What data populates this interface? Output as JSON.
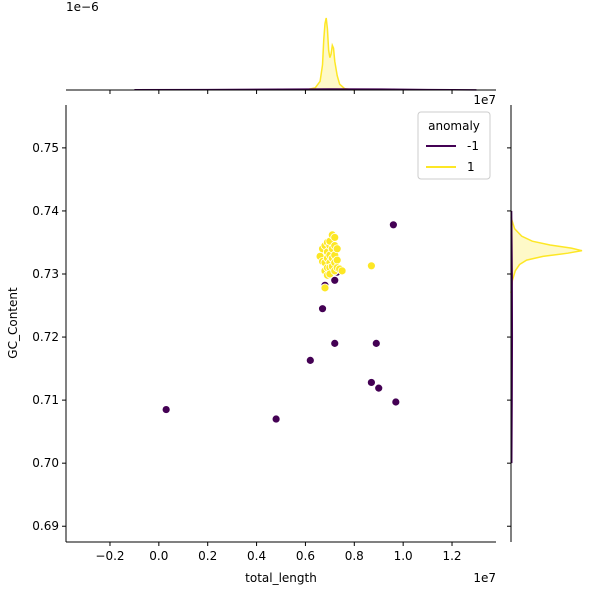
{
  "chart_data": {
    "type": "scatter",
    "xlabel": "total_length",
    "ylabel": "GC_Content",
    "x_offset_text": "1e7",
    "y_offset_text": "1e7",
    "top_marginal_offset_text": "1e−6",
    "xlim": [
      -0.38,
      1.38
    ],
    "ylim": [
      0.6875,
      0.7568
    ],
    "x_ticks": [
      -0.2,
      0.0,
      0.2,
      0.4,
      0.6,
      0.8,
      1.0,
      1.2
    ],
    "x_tick_labels": [
      "−0.2",
      "0.0",
      "0.2",
      "0.4",
      "0.6",
      "0.8",
      "1.0",
      "1.2"
    ],
    "y_ticks": [
      0.69,
      0.7,
      0.71,
      0.72,
      0.73,
      0.74,
      0.75
    ],
    "y_tick_labels": [
      "0.69",
      "0.70",
      "0.71",
      "0.72",
      "0.73",
      "0.74",
      "0.75"
    ],
    "legend": {
      "title": "anomaly",
      "placement": "top-right",
      "entries": [
        {
          "label": "-1",
          "color": "#440154"
        },
        {
          "label": "1",
          "color": "#fde725"
        }
      ]
    },
    "series": [
      {
        "name": "-1",
        "color": "#440154",
        "points": [
          [
            0.03,
            0.7085
          ],
          [
            0.48,
            0.707
          ],
          [
            0.62,
            0.7163
          ],
          [
            0.67,
            0.7245
          ],
          [
            0.68,
            0.7282
          ],
          [
            0.72,
            0.719
          ],
          [
            0.72,
            0.729
          ],
          [
            0.73,
            0.7303
          ],
          [
            0.87,
            0.7128
          ],
          [
            0.89,
            0.719
          ],
          [
            0.9,
            0.7119
          ],
          [
            0.96,
            0.7378
          ],
          [
            0.97,
            0.7097
          ]
        ]
      },
      {
        "name": "1",
        "color": "#fde725",
        "points": [
          [
            0.66,
            0.7328
          ],
          [
            0.67,
            0.734
          ],
          [
            0.67,
            0.732
          ],
          [
            0.68,
            0.7345
          ],
          [
            0.68,
            0.7318
          ],
          [
            0.68,
            0.7305
          ],
          [
            0.69,
            0.7335
          ],
          [
            0.69,
            0.735
          ],
          [
            0.69,
            0.7325
          ],
          [
            0.69,
            0.731
          ],
          [
            0.69,
            0.7298
          ],
          [
            0.7,
            0.7345
          ],
          [
            0.7,
            0.733
          ],
          [
            0.7,
            0.7318
          ],
          [
            0.7,
            0.7352
          ],
          [
            0.7,
            0.731
          ],
          [
            0.7,
            0.73
          ],
          [
            0.71,
            0.7362
          ],
          [
            0.71,
            0.734
          ],
          [
            0.71,
            0.7325
          ],
          [
            0.71,
            0.7312
          ],
          [
            0.72,
            0.7358
          ],
          [
            0.72,
            0.7345
          ],
          [
            0.72,
            0.733
          ],
          [
            0.72,
            0.7318
          ],
          [
            0.72,
            0.7305
          ],
          [
            0.73,
            0.734
          ],
          [
            0.73,
            0.7322
          ],
          [
            0.73,
            0.731
          ],
          [
            0.74,
            0.7308
          ],
          [
            0.75,
            0.7305
          ],
          [
            0.68,
            0.7278
          ],
          [
            0.87,
            0.7313
          ]
        ]
      }
    ],
    "marginal_x": {
      "series": [
        {
          "name": "1",
          "color": "#fde725",
          "x": [
            0.6,
            0.64,
            0.66,
            0.67,
            0.675,
            0.68,
            0.685,
            0.69,
            0.695,
            0.7,
            0.705,
            0.71,
            0.715,
            0.72,
            0.73,
            0.74,
            0.76,
            0.8
          ],
          "density": [
            0.0,
            0.03,
            0.12,
            0.35,
            0.7,
            0.92,
            1.0,
            0.85,
            0.55,
            0.45,
            0.5,
            0.62,
            0.58,
            0.4,
            0.2,
            0.08,
            0.02,
            0.0
          ]
        },
        {
          "name": "-1",
          "color": "#440154",
          "x": [
            -0.1,
            0.2,
            0.5,
            0.7,
            0.9,
            1.1,
            1.3
          ],
          "density": [
            0.003,
            0.006,
            0.01,
            0.014,
            0.012,
            0.006,
            0.002
          ]
        }
      ]
    },
    "marginal_y": {
      "series": [
        {
          "name": "1",
          "color": "#fde725",
          "y": [
            0.727,
            0.729,
            0.7305,
            0.7315,
            0.7322,
            0.7328,
            0.7333,
            0.7337,
            0.7341,
            0.7346,
            0.7352,
            0.736,
            0.7372,
            0.739
          ],
          "density": [
            0.0,
            0.02,
            0.06,
            0.12,
            0.22,
            0.45,
            0.8,
            1.0,
            0.85,
            0.55,
            0.3,
            0.15,
            0.05,
            0.0
          ]
        },
        {
          "name": "-1",
          "color": "#440154",
          "y": [
            0.7,
            0.71,
            0.72,
            0.73,
            0.74
          ],
          "density": [
            0.01,
            0.015,
            0.018,
            0.016,
            0.008
          ]
        }
      ]
    }
  }
}
